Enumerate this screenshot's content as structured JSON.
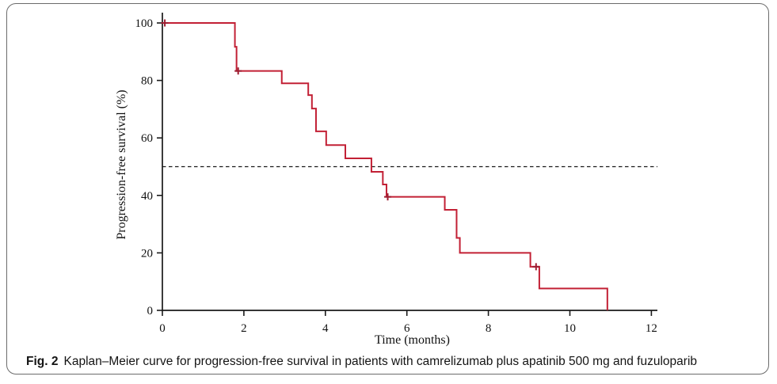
{
  "figure": {
    "caption_label": "Fig. 2",
    "caption_text": "Kaplan–Meier curve for progression-free survival in patients with camrelizumab plus apatinib 500 mg and fuzuloparib"
  },
  "chart_data": {
    "type": "line",
    "subtype": "kaplan-meier-step-curve",
    "title": "",
    "xlabel": "Time (months)",
    "ylabel": "Progression-free survival (%)",
    "xlim": [
      0,
      12
    ],
    "ylim": [
      0,
      100
    ],
    "xticks": [
      0,
      2,
      4,
      6,
      8,
      10,
      12
    ],
    "yticks": [
      0,
      20,
      40,
      60,
      80,
      100
    ],
    "grid": false,
    "legend": false,
    "axis_color": "#1a1a1a",
    "median_reference_line": {
      "y": 50,
      "style": "dashed",
      "color": "#1a1a1a"
    },
    "series": [
      {
        "name": "camrelizumab plus apatinib 500 mg and fuzuloparib",
        "color": "#c22035",
        "censor_color": "#9e1d31",
        "start": {
          "t": 0,
          "survival_pct": 100
        },
        "steps": [
          {
            "t": 1.78,
            "survival_pct": 91.7
          },
          {
            "t": 1.82,
            "survival_pct": 83.3
          },
          {
            "t": 2.93,
            "survival_pct": 79.0
          },
          {
            "t": 3.58,
            "survival_pct": 74.9
          },
          {
            "t": 3.67,
            "survival_pct": 70.2
          },
          {
            "t": 3.77,
            "survival_pct": 62.3
          },
          {
            "t": 4.02,
            "survival_pct": 57.5
          },
          {
            "t": 4.49,
            "survival_pct": 52.9
          },
          {
            "t": 5.13,
            "survival_pct": 48.2
          },
          {
            "t": 5.41,
            "survival_pct": 43.8
          },
          {
            "t": 5.5,
            "survival_pct": 39.5
          },
          {
            "t": 6.93,
            "survival_pct": 35.0
          },
          {
            "t": 7.22,
            "survival_pct": 25.2
          },
          {
            "t": 7.3,
            "survival_pct": 20.0
          },
          {
            "t": 9.03,
            "survival_pct": 15.2
          },
          {
            "t": 9.25,
            "survival_pct": 7.6
          },
          {
            "t": 10.92,
            "survival_pct": 0
          }
        ],
        "censor_marks": [
          {
            "t": 0.06,
            "survival_pct": 100
          },
          {
            "t": 1.86,
            "survival_pct": 83.3
          },
          {
            "t": 5.53,
            "survival_pct": 39.5
          },
          {
            "t": 9.17,
            "survival_pct": 15.2
          }
        ]
      }
    ]
  }
}
